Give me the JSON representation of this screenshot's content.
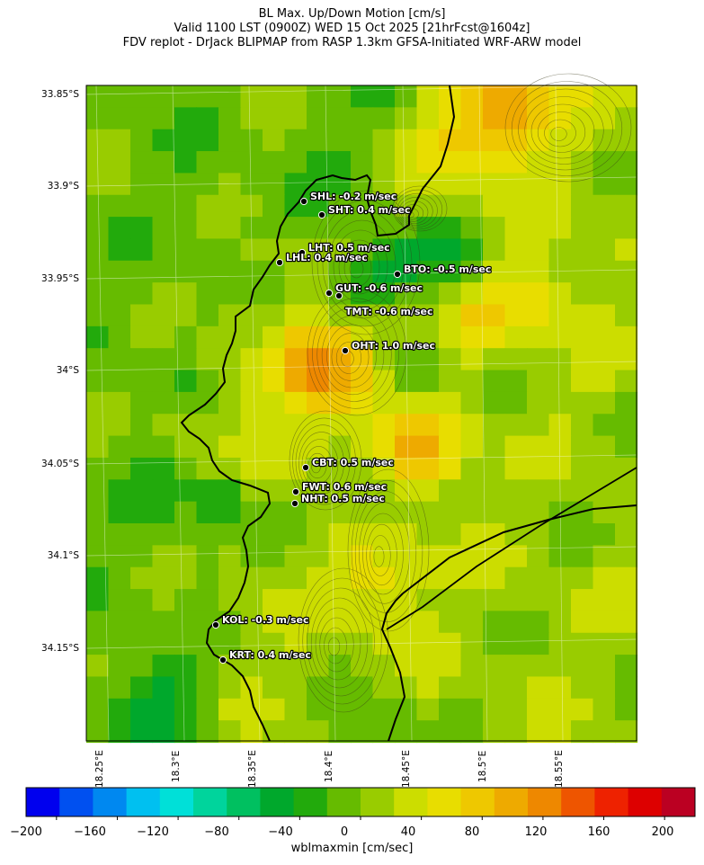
{
  "title": {
    "line1": "BL Max. Up/Down Motion [cm/s]",
    "line2": "Valid 1100 LST (0900Z) WED 15 Oct 2025 [21hrFcst@1604z]",
    "line3": "FDV replot - DrJack BLIPMAP from RASP 1.3km GFSA-Initiated WRF-ARW model"
  },
  "axes": {
    "lat_labels": [
      "33.85°S",
      "33.9°S",
      "33.95°S",
      "34°S",
      "34.05°S",
      "34.1°S",
      "34.15°S"
    ],
    "lon_labels": [
      "18.25°E",
      "18.3°E",
      "18.35°E",
      "18.4°E",
      "18.45°E",
      "18.5°E",
      "18.55°E"
    ]
  },
  "stations": [
    {
      "code": "SHL",
      "label": "SHL: -0.2 m/sec",
      "value": -0.2
    },
    {
      "code": "SHT",
      "label": "SHT: 0.4 m/sec",
      "value": 0.4
    },
    {
      "code": "LHT",
      "label": "LHT: 0.5 m/sec",
      "value": 0.5
    },
    {
      "code": "LHL",
      "label": "LHL: 0.4 m/sec",
      "value": 0.4
    },
    {
      "code": "BTO",
      "label": "BTO: -0.5 m/sec",
      "value": -0.5
    },
    {
      "code": "GUT",
      "label": "GUT: -0.6 m/sec",
      "value": -0.6
    },
    {
      "code": "TMT",
      "label": "TMT: -0.6 m/sec",
      "value": -0.6
    },
    {
      "code": "OHT",
      "label": "OHT: 1.0 m/sec",
      "value": 1.0
    },
    {
      "code": "CBT",
      "label": "CBT: 0.5 m/sec",
      "value": 0.5
    },
    {
      "code": "FWT",
      "label": "FWT: 0.6 m/sec",
      "value": 0.6
    },
    {
      "code": "NHT",
      "label": "NHT: 0.5 m/sec",
      "value": 0.5
    },
    {
      "code": "KOL",
      "label": "KOL: -0.3 m/sec",
      "value": -0.3
    },
    {
      "code": "KRT",
      "label": "KRT: 0.4 m/sec",
      "value": 0.4
    }
  ],
  "colorbar": {
    "label": "wblmaxmin [cm/sec]",
    "ticks": [
      "−200",
      "−160",
      "−120",
      "−80",
      "−40",
      "0",
      "40",
      "80",
      "120",
      "160",
      "200"
    ],
    "min": -220,
    "max": 220,
    "colors": [
      "#0000ee",
      "#0050f0",
      "#0088f0",
      "#00c0f0",
      "#00e0d8",
      "#00d49c",
      "#00c060",
      "#00a82c",
      "#22aa0c",
      "#66bb00",
      "#99cc00",
      "#ccdd00",
      "#e8dd00",
      "#eec800",
      "#eeaa00",
      "#ee8800",
      "#ee5500",
      "#ee2200",
      "#dd0000",
      "#bb0022"
    ]
  }
}
